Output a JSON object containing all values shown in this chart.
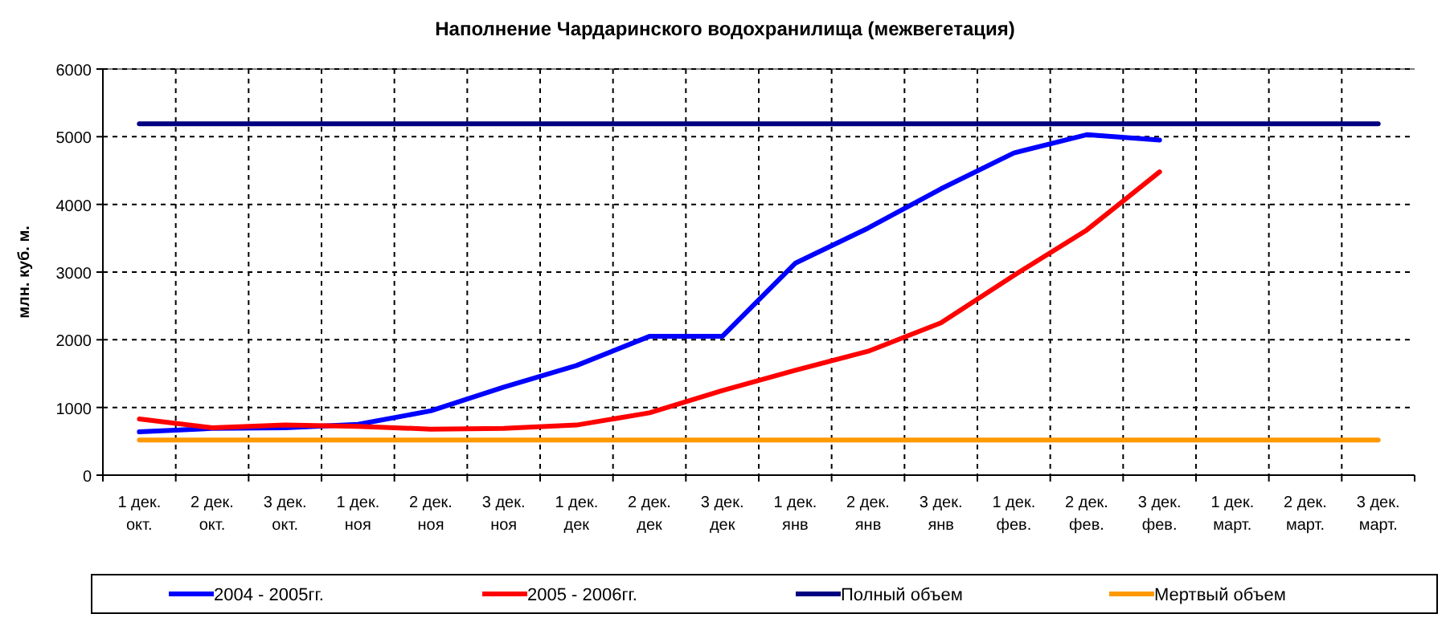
{
  "chart_data": {
    "type": "line",
    "title": "Наполнение Чардаринского водохранилища (межвегетация)",
    "ylabel": "млн. куб. м.",
    "categories": [
      "1 дек.\nокт.",
      "2 дек.\nокт.",
      "3 дек.\nокт.",
      "1 дек.\nноя",
      "2 дек.\nноя",
      "3 дек.\nноя",
      "1 дек.\nдек",
      "2 дек.\nдек",
      "3 дек.\nдек",
      "1 дек.\nянв",
      "2 дек.\nянв",
      "3 дек.\nянв",
      "1 дек.\nфев.",
      "2 дек.\nфев.",
      "3 дек.\nфев.",
      "1 дек.\nмарт.",
      "2 дек.\nмарт.",
      "3 дек.\nмарт."
    ],
    "series": [
      {
        "name": "2004 - 2005гг.",
        "color": "#0000ff",
        "values": [
          640,
          690,
          700,
          750,
          950,
          1300,
          1620,
          2050,
          2050,
          3130,
          3650,
          4230,
          4760,
          5030,
          4950,
          null,
          null,
          null
        ]
      },
      {
        "name": "2005 - 2006гг.",
        "color": "#ff0000",
        "values": [
          830,
          700,
          740,
          720,
          680,
          690,
          740,
          920,
          1250,
          1550,
          1830,
          2250,
          2950,
          3620,
          4480,
          null,
          null,
          null
        ]
      },
      {
        "name": "Полный объем",
        "color": "#000080",
        "values": [
          5190,
          5190,
          5190,
          5190,
          5190,
          5190,
          5190,
          5190,
          5190,
          5190,
          5190,
          5190,
          5190,
          5190,
          5190,
          5190,
          5190,
          5190
        ]
      },
      {
        "name": "Мертвый объем",
        "color": "#ff9900",
        "values": [
          520,
          520,
          520,
          520,
          520,
          520,
          520,
          520,
          520,
          520,
          520,
          520,
          520,
          520,
          520,
          520,
          520,
          520
        ]
      }
    ],
    "ylim": [
      0,
      6000
    ],
    "yticks": [
      0,
      1000,
      2000,
      3000,
      4000,
      5000,
      6000
    ],
    "grid": true,
    "legend": "bottom",
    "marker": "none",
    "line_style": "solid"
  }
}
